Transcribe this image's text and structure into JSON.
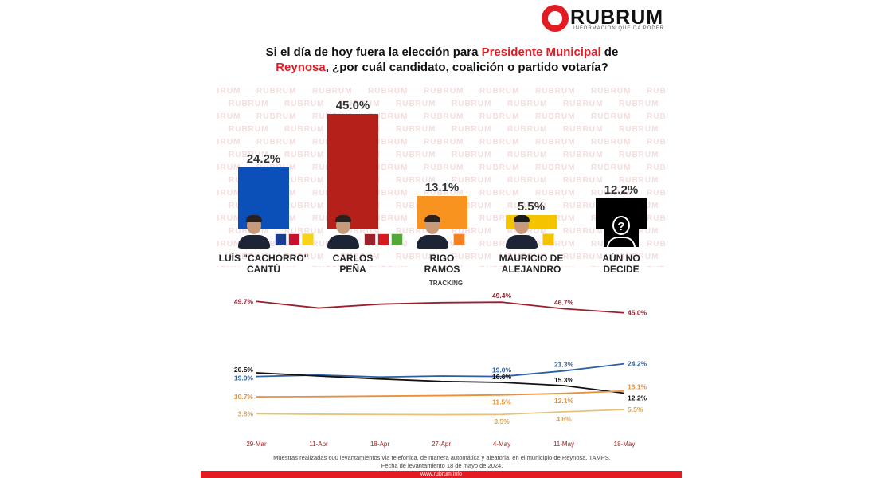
{
  "brand": {
    "name": "RUBRUM",
    "tagline": "INFORMACION QUE DA PODER",
    "watermark": "RUBRUM",
    "accent_color": "#e31b23"
  },
  "question": {
    "part1": "Si el día de hoy fuera la elección para ",
    "highlight1": "Presidente Municipal",
    "part2": " de",
    "highlight2": "Reynosa",
    "part3": ", ¿por cuál candidato, coalición o partido votaría?"
  },
  "chart_data": [
    {
      "type": "bar",
      "categories": [
        "LUÍS \"CACHORRO\" CANTÚ",
        "CARLOS PEÑA",
        "RIGO RAMOS",
        "MAURICIO DE ALEJANDRO",
        "AÚN NO DECIDE"
      ],
      "name_lines": [
        [
          "LUÍS \"CACHORRO\"",
          "CANTÚ"
        ],
        [
          "CARLOS",
          "PEÑA"
        ],
        [
          "RIGO",
          "RAMOS"
        ],
        [
          "MAURICIO DE",
          "ALEJANDRO"
        ],
        [
          "AÚN NO",
          "DECIDE"
        ]
      ],
      "values": [
        24.2,
        45.0,
        13.1,
        5.5,
        12.2
      ],
      "value_labels": [
        "24.2%",
        "45.0%",
        "13.1%",
        "5.5%",
        "12.2%"
      ],
      "colors": [
        "#0b4fb8",
        "#b5201b",
        "#f7931e",
        "#f5c400",
        "#000000"
      ],
      "ylim": [
        0,
        45
      ],
      "parties": [
        [
          "PAN",
          "PRI",
          "PRD"
        ],
        [
          "MORENA",
          "PT",
          "PVEM"
        ],
        [
          "MC"
        ],
        [
          "PRT"
        ],
        []
      ],
      "party_colors": {
        "PAN": "#1a3d8f",
        "PRI": "#c8102e",
        "PRD": "#f7d417",
        "MORENA": "#9c1f2c",
        "PT": "#d71920",
        "PVEM": "#53a83a",
        "MC": "#f58220",
        "PRT": "#f5c400"
      }
    },
    {
      "type": "line",
      "title": "TRACKING",
      "x": [
        "29-Mar",
        "11-Apr",
        "18-Apr",
        "27-Apr",
        "4-May",
        "11-May",
        "18-May"
      ],
      "ylim": [
        0,
        55
      ],
      "series": [
        {
          "color": "#9c1f2c",
          "values": [
            49.7,
            47.0,
            48.6,
            49.2,
            49.4,
            46.7,
            45.0
          ],
          "labels": [
            "49.7%",
            "",
            "",
            "",
            "49.4%",
            "46.7%",
            "45.0%"
          ]
        },
        {
          "color": "#2e5fa0",
          "values": [
            19.0,
            19.6,
            18.8,
            19.2,
            19.0,
            21.3,
            24.2
          ],
          "labels": [
            "19.0%",
            "",
            "",
            "",
            "19.0%",
            "21.3%",
            "24.2%"
          ]
        },
        {
          "color": "#111111",
          "values": [
            20.5,
            19.2,
            18.0,
            17.0,
            16.6,
            15.3,
            12.2
          ],
          "labels": [
            "20.5%",
            "",
            "",
            "",
            "16.6%",
            "15.3%",
            "12.2%"
          ]
        },
        {
          "color": "#e8913a",
          "values": [
            10.7,
            10.8,
            11.0,
            11.2,
            11.5,
            12.1,
            13.1
          ],
          "labels": [
            "10.7%",
            "",
            "",
            "",
            "11.5%",
            "12.1%",
            "13.1%"
          ]
        },
        {
          "color": "#e6c27a",
          "values": [
            3.8,
            3.6,
            3.5,
            3.4,
            3.5,
            4.6,
            5.5
          ],
          "labels": [
            "3.8%",
            "",
            "",
            "",
            "3.5%",
            "4.6%",
            "5.5%"
          ]
        }
      ]
    }
  ],
  "footnote": {
    "line1": "Muestras realizadas 600 levantamientos vía telefónica, de manera automática y aleatoria, en el municipio de Reynosa, TAMPS.",
    "line2": "Fecha de levantamiento 18 de mayo de 2024."
  },
  "website": "www.rubrum.info"
}
